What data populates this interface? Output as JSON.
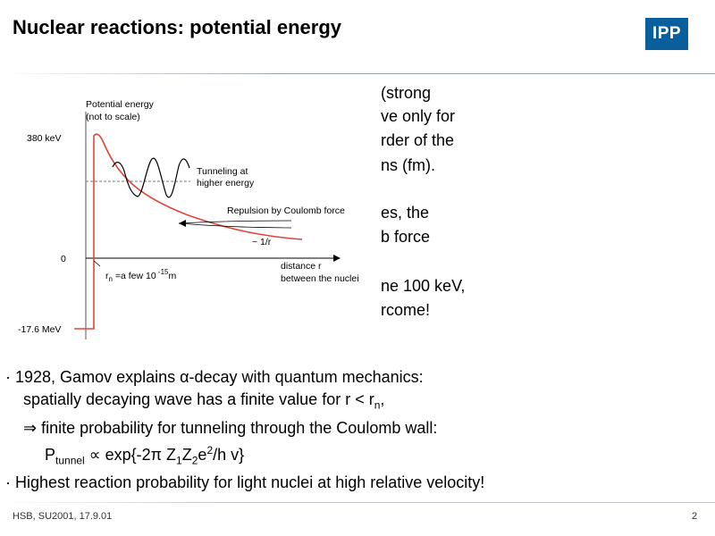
{
  "slide": {
    "title": "Nuclear reactions: potential energy",
    "logo_text": "IPP",
    "right_text": [
      "(strong",
      "ve only for",
      "rder of the",
      "ns (fm).",
      "es, the",
      "b force",
      "ne 100 keV,",
      "rcome!"
    ]
  },
  "figure": {
    "ylabel_line1": "Potential energy",
    "ylabel_line2": "(not to scale)",
    "y_tick_380": "380 keV",
    "y_tick_0": "0",
    "y_tick_neg": "-17.6 MeV",
    "tunnel_line1": "Tunneling at",
    "tunnel_line2": "higher energy",
    "coulomb_label": "Repulsion by Coulomb force",
    "inv_r_label": "~ 1/r",
    "rn_r": "r",
    "rn_sub": "n",
    "rn_mid": " =a few 10",
    "rn_exp": " -15",
    "rn_unit": "m",
    "xlabel_line1": "distance  r",
    "xlabel_line2": "between the nuclei",
    "colors": {
      "curve": "#e0453a",
      "axis": "#e0453a",
      "line": "#000000"
    }
  },
  "bullets": {
    "b1": "1928, Gamov explains α-decay with quantum mechanics:",
    "b1_sub_pre": "spatially decaying wave has a finite value for r < r",
    "b1_sub_subscript": "n",
    "b1_sub_post": ",",
    "b1_sub2": "⇒ finite probability for tunneling through the Coulomb wall:",
    "formula_P": "P",
    "formula_tunnel": "tunnel",
    "formula_mid": " ∝ exp{-2π Z",
    "formula_1": "1",
    "formula_Z": "Z",
    "formula_2": "2",
    "formula_e": "e",
    "formula_sq": "2",
    "formula_end": "/h v}",
    "b2": "Highest reaction probability for light nuclei at high relative velocity!",
    "bullet_char": "·"
  },
  "footer": {
    "left": "HSB, SU2001, 17.9.01",
    "page": "2"
  }
}
